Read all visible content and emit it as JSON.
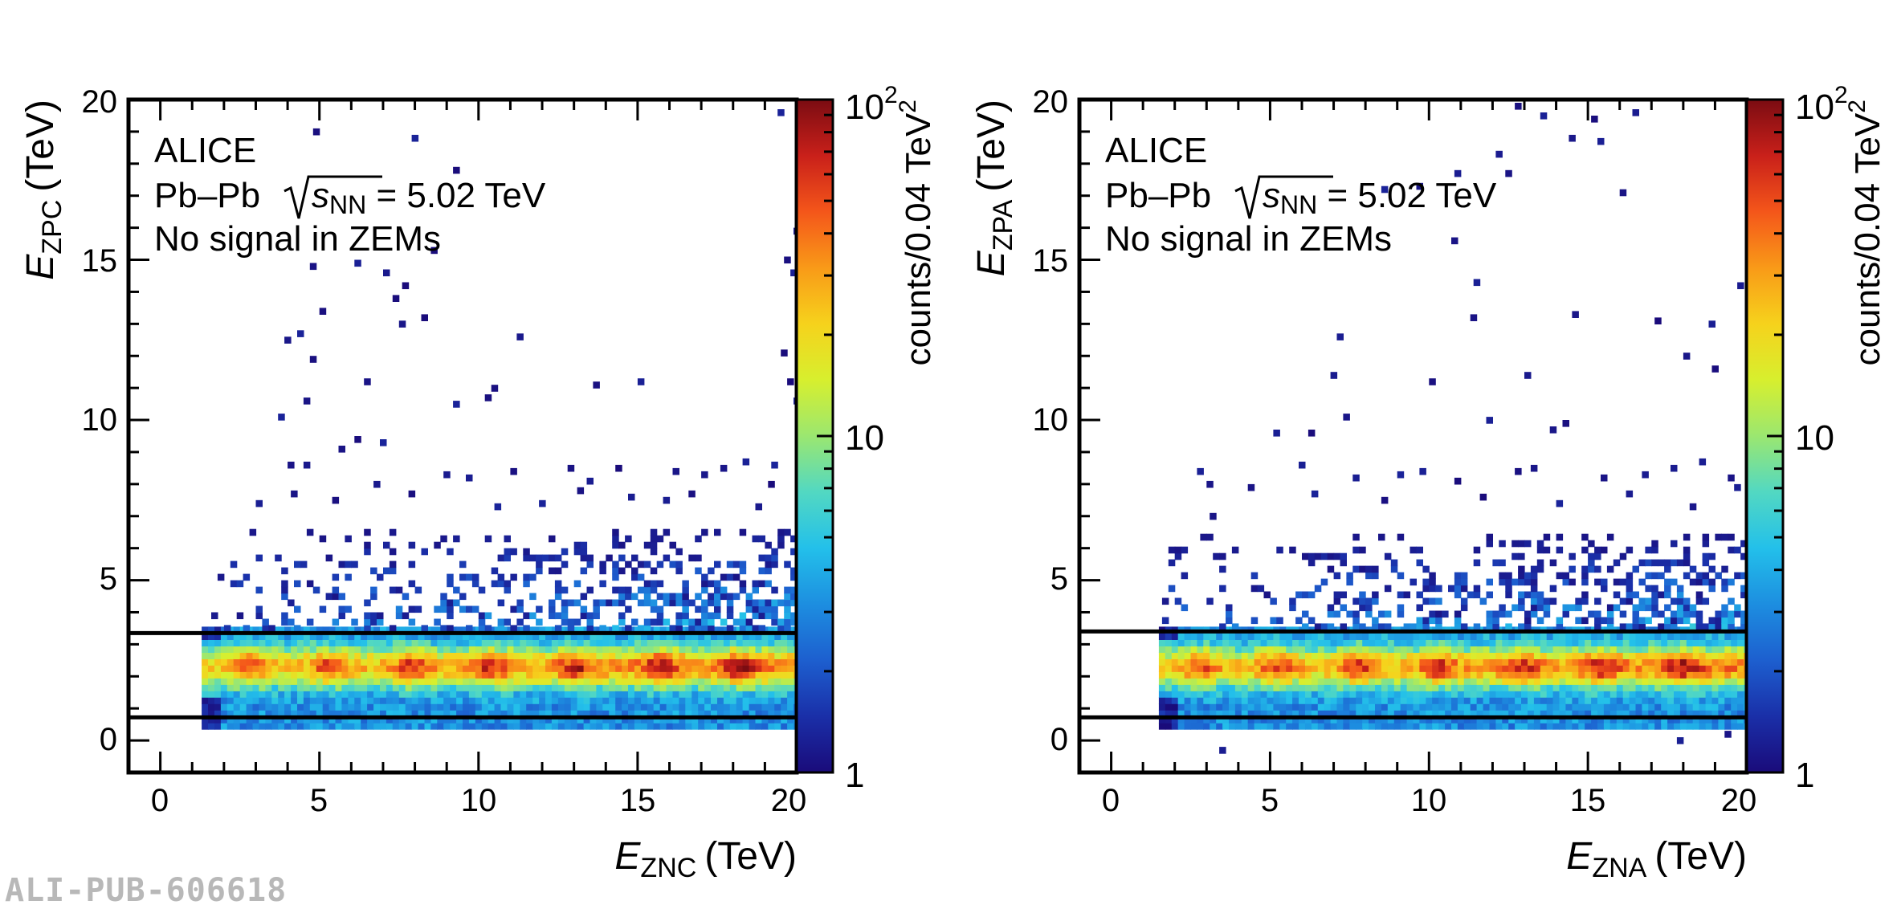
{
  "watermark": "ALI-PUB-606618",
  "colormap": [
    "#1a0b7a",
    "#1a2fa8",
    "#1d5fcf",
    "#1d8ee0",
    "#23c0ea",
    "#52d8c2",
    "#9be770",
    "#d7ef2e",
    "#f6d21c",
    "#f99a18",
    "#f4561a",
    "#c9201a",
    "#7b0c12"
  ],
  "chart_data": [
    {
      "type": "heatmap",
      "id": "left",
      "x_label_main": "E",
      "x_label_sub": "ZNC",
      "x_label_unit": "(TeV)",
      "y_label_main": "E",
      "y_label_sub": "ZPC",
      "y_label_unit": "(TeV)",
      "xlim": [
        -1,
        20
      ],
      "ylim": [
        -1,
        20
      ],
      "x_ticks": [
        "0",
        "5",
        "10",
        "15",
        "20"
      ],
      "y_ticks": [
        "0",
        "5",
        "10",
        "15",
        "20"
      ],
      "colorbar": {
        "scale": "log",
        "range": [
          1,
          100
        ],
        "ticks": [
          "1",
          "10",
          "10"
        ],
        "tick_exp": "2",
        "label_main": "counts/0.04 TeV",
        "label_exp": "2"
      },
      "legend": {
        "line1": "ALICE",
        "line2_sys": "Pb–Pb",
        "line2_sqrt": "s",
        "line2_sub": "NN",
        "line2_val": " = 5.02 TeV",
        "line3": "No signal in ZEMs"
      },
      "cut_lines_y": [
        3.35,
        0.72
      ],
      "band": {
        "y_center": 2.2,
        "y_sigma": 0.62,
        "y_min": 0.35,
        "y_max": 3.4,
        "x_start": 1.3,
        "hotspots": [
          2.7,
          5.2,
          7.8,
          10.3,
          13,
          15.6,
          18.1
        ]
      },
      "halo": {
        "y_min": 3.4,
        "y_max": 6.6,
        "x_start": 1.4
      },
      "outliers": [
        [
          4.8,
          18.9
        ],
        [
          7.9,
          18.7
        ],
        [
          9.2,
          17.7
        ],
        [
          8.5,
          15.2
        ],
        [
          4.7,
          14.7
        ],
        [
          6.1,
          14.8
        ],
        [
          7.6,
          14.1
        ],
        [
          7.0,
          14.5
        ],
        [
          5.0,
          13.3
        ],
        [
          7.3,
          13.7
        ],
        [
          7.5,
          12.9
        ],
        [
          3.9,
          12.4
        ],
        [
          4.3,
          12.6
        ],
        [
          8.2,
          13.1
        ],
        [
          11.2,
          12.5
        ],
        [
          4.7,
          11.8
        ],
        [
          6.4,
          11.1
        ],
        [
          3.7,
          10.0
        ],
        [
          4.5,
          10.5
        ],
        [
          9.2,
          10.4
        ],
        [
          10.4,
          10.9
        ],
        [
          10.2,
          10.6
        ],
        [
          13.6,
          11.0
        ],
        [
          15.0,
          11.1
        ],
        [
          6.1,
          9.3
        ],
        [
          6.9,
          9.2
        ],
        [
          5.6,
          9.0
        ],
        [
          4.0,
          8.5
        ],
        [
          4.5,
          8.5
        ],
        [
          8.9,
          8.2
        ],
        [
          9.6,
          8.1
        ],
        [
          11.0,
          8.3
        ],
        [
          12.8,
          8.4
        ],
        [
          13.4,
          8.0
        ],
        [
          14.3,
          8.4
        ],
        [
          16.1,
          8.3
        ],
        [
          17.0,
          8.2
        ],
        [
          17.6,
          8.4
        ],
        [
          18.3,
          8.6
        ],
        [
          19.2,
          8.5
        ],
        [
          19.9,
          10.5
        ],
        [
          19.7,
          11.1
        ],
        [
          19.5,
          12.0
        ],
        [
          19.8,
          14.5
        ],
        [
          19.6,
          14.9
        ],
        [
          19.9,
          15.8
        ],
        [
          19.4,
          19.5
        ],
        [
          3.0,
          7.3
        ],
        [
          4.1,
          7.6
        ],
        [
          5.4,
          7.4
        ],
        [
          6.7,
          7.9
        ],
        [
          7.8,
          7.6
        ],
        [
          10.5,
          7.2
        ],
        [
          11.9,
          7.3
        ],
        [
          13.1,
          7.7
        ],
        [
          14.7,
          7.5
        ],
        [
          15.8,
          7.4
        ],
        [
          16.6,
          7.6
        ],
        [
          18.7,
          7.2
        ],
        [
          19.1,
          7.9
        ]
      ]
    },
    {
      "type": "heatmap",
      "id": "right",
      "x_label_main": "E",
      "x_label_sub": "ZNA",
      "x_label_unit": "(TeV)",
      "y_label_main": "E",
      "y_label_sub": "ZPA",
      "y_label_unit": "(TeV)",
      "xlim": [
        -1,
        20
      ],
      "ylim": [
        -1,
        20
      ],
      "x_ticks": [
        "0",
        "5",
        "10",
        "15",
        "20"
      ],
      "y_ticks": [
        "0",
        "5",
        "10",
        "15",
        "20"
      ],
      "colorbar": {
        "scale": "log",
        "range": [
          1,
          100
        ],
        "ticks": [
          "1",
          "10",
          "10"
        ],
        "tick_exp": "2",
        "label_main": "counts/0.04 TeV",
        "label_exp": "2"
      },
      "legend": {
        "line1": "ALICE",
        "line2_sys": "Pb–Pb",
        "line2_sqrt": "s",
        "line2_sub": "NN",
        "line2_val": " = 5.02 TeV",
        "line3": "No signal in ZEMs"
      },
      "cut_lines_y": [
        3.4,
        0.72
      ],
      "band": {
        "y_center": 2.2,
        "y_sigma": 0.62,
        "y_min": 0.35,
        "y_max": 3.45,
        "x_start": 1.5,
        "hotspots": [
          2.7,
          5.1,
          7.7,
          10.2,
          12.8,
          15.3,
          17.9
        ]
      },
      "halo": {
        "y_min": 3.45,
        "y_max": 6.4,
        "x_start": 1.6
      },
      "outliers": [
        [
          12.7,
          19.7
        ],
        [
          13.5,
          19.4
        ],
        [
          15.1,
          19.3
        ],
        [
          16.4,
          19.5
        ],
        [
          12.1,
          18.2
        ],
        [
          14.4,
          18.7
        ],
        [
          15.3,
          18.6
        ],
        [
          10.8,
          17.6
        ],
        [
          12.4,
          17.6
        ],
        [
          9.6,
          17.2
        ],
        [
          8.5,
          17.1
        ],
        [
          16.0,
          17.0
        ],
        [
          10.7,
          15.5
        ],
        [
          11.4,
          14.2
        ],
        [
          14.5,
          13.2
        ],
        [
          11.3,
          13.1
        ],
        [
          17.1,
          13.0
        ],
        [
          18.8,
          12.9
        ],
        [
          7.1,
          12.5
        ],
        [
          13.0,
          11.3
        ],
        [
          6.9,
          11.3
        ],
        [
          10.0,
          11.1
        ],
        [
          18.0,
          11.9
        ],
        [
          18.9,
          11.5
        ],
        [
          19.7,
          14.1
        ],
        [
          7.3,
          10.0
        ],
        [
          11.8,
          9.9
        ],
        [
          13.8,
          9.6
        ],
        [
          14.2,
          9.8
        ],
        [
          5.1,
          9.5
        ],
        [
          6.2,
          9.5
        ],
        [
          5.9,
          8.5
        ],
        [
          2.7,
          8.3
        ],
        [
          3.0,
          7.9
        ],
        [
          7.6,
          8.1
        ],
        [
          9.0,
          8.2
        ],
        [
          9.7,
          8.3
        ],
        [
          10.8,
          8.0
        ],
        [
          12.7,
          8.3
        ],
        [
          13.2,
          8.4
        ],
        [
          15.4,
          8.1
        ],
        [
          16.7,
          8.2
        ],
        [
          17.6,
          8.4
        ],
        [
          18.5,
          8.6
        ],
        [
          19.4,
          8.1
        ],
        [
          4.3,
          7.8
        ],
        [
          6.3,
          7.6
        ],
        [
          8.5,
          7.4
        ],
        [
          11.6,
          7.5
        ],
        [
          14.0,
          7.3
        ],
        [
          16.2,
          7.6
        ],
        [
          18.2,
          7.2
        ],
        [
          19.6,
          7.8
        ],
        [
          3.1,
          6.9
        ],
        [
          17.8,
          -0.1
        ],
        [
          20.0,
          -0.3
        ],
        [
          3.4,
          -0.4
        ],
        [
          19.3,
          0.1
        ]
      ]
    }
  ]
}
